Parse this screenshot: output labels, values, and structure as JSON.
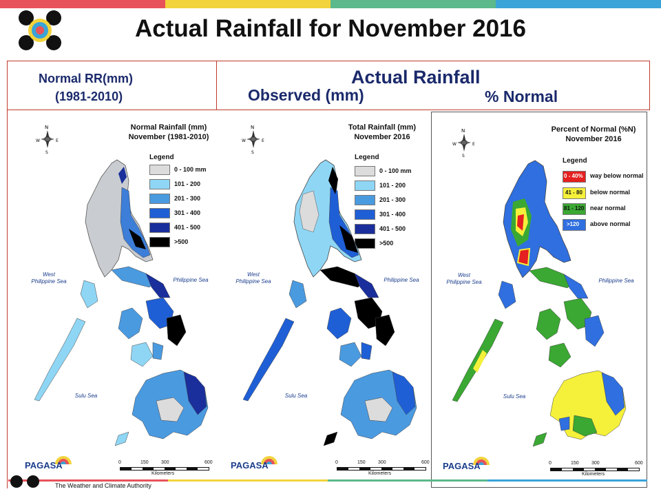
{
  "slide": {
    "title": "Actual Rainfall for November 2016",
    "stripe_colors": [
      "#e8525a",
      "#f2d33c",
      "#5bb98b",
      "#3aa3d8"
    ]
  },
  "headers": {
    "normal_line1": "Normal RR(mm)",
    "normal_line2": "(1981-2010)",
    "actual": "Actual Rainfall",
    "observed": "Observed (mm)",
    "percent": "% Normal"
  },
  "maps": [
    {
      "title_line1": "Normal Rainfall (mm)",
      "title_line2": "November (1981-2010)",
      "legend_title": "Legend",
      "legend": [
        {
          "label": "0 - 100 mm",
          "color": "#dcdcdc"
        },
        {
          "label": "101 - 200",
          "color": "#8fd6f5"
        },
        {
          "label": "201 - 300",
          "color": "#4a9ae0"
        },
        {
          "label": "301 - 400",
          "color": "#1f5fd6"
        },
        {
          "label": "401 - 500",
          "color": "#1a2f9c"
        },
        {
          "label": ">500",
          "color": "#000000"
        }
      ],
      "seas": {
        "west_line1": "West",
        "west_line2": "Philippine Sea",
        "east": "Philippine Sea",
        "sulu": "Sulu Sea"
      },
      "scale": {
        "ticks": [
          "0",
          "150",
          "300",
          "600"
        ],
        "unit": "Kilometers"
      },
      "logo_text": "PAGASA"
    },
    {
      "title_line1": "Total Rainfall (mm)",
      "title_line2": "November 2016",
      "legend_title": "Legend",
      "legend": [
        {
          "label": "0 - 100 mm",
          "color": "#dcdcdc"
        },
        {
          "label": "101 - 200",
          "color": "#8fd6f5"
        },
        {
          "label": "201 - 300",
          "color": "#4a9ae0"
        },
        {
          "label": "301 - 400",
          "color": "#1f5fd6"
        },
        {
          "label": "401 - 500",
          "color": "#1a2f9c"
        },
        {
          "label": ">500",
          "color": "#000000"
        }
      ],
      "seas": {
        "west_line1": "West",
        "west_line2": "Philippine Sea",
        "east": "Philippine Sea",
        "sulu": "Sulu Sea"
      },
      "scale": {
        "ticks": [
          "0",
          "150",
          "300",
          "600"
        ],
        "unit": "Kilometers"
      },
      "logo_text": "PAGASA"
    },
    {
      "title_line1": "Percent of Normal (%N)",
      "title_line2": "November 2016",
      "legend_title": "Legend",
      "legend": [
        {
          "label": "way below normal",
          "swatch": "0 - 40%",
          "color": "#e52020"
        },
        {
          "label": "below normal",
          "swatch": "41 - 80",
          "color": "#f5f03a"
        },
        {
          "label": "near normal",
          "swatch": "81 - 120",
          "color": "#3aa832"
        },
        {
          "label": "above normal",
          "swatch": ">120",
          "color": "#2f6fe0"
        }
      ],
      "seas": {
        "west_line1": "West",
        "west_line2": "Philippine Sea",
        "east": "Philippine Sea",
        "sulu": "Sulu Sea"
      },
      "scale": {
        "ticks": [
          "0",
          "150",
          "300",
          "600"
        ],
        "unit": "Kilometers"
      },
      "logo_text": "PAGASA"
    }
  ],
  "footer": {
    "tagline": "The Weather and Climate Authority"
  }
}
